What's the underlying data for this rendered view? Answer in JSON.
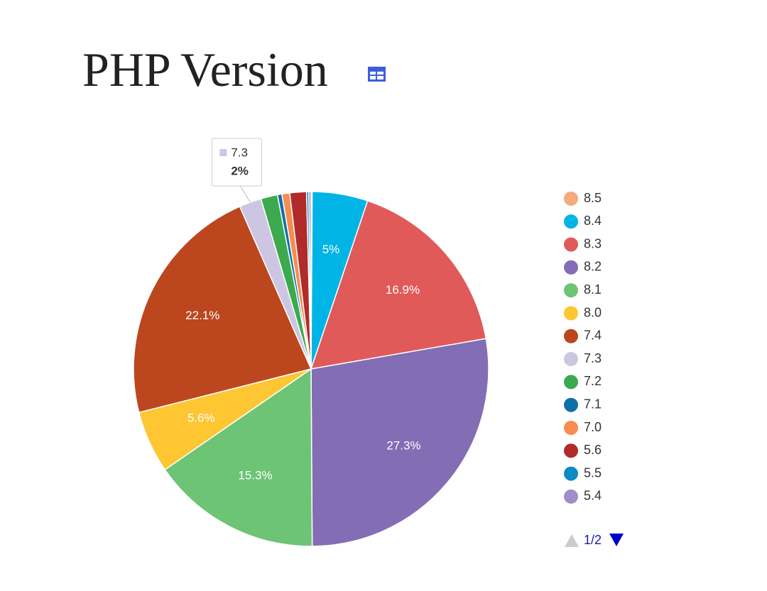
{
  "chart_data": {
    "type": "pie",
    "title": "PHP Version",
    "categories": [
      "8.5",
      "8.4",
      "8.3",
      "8.2",
      "8.1",
      "8.0",
      "7.4",
      "7.3",
      "7.2",
      "7.1",
      "7.0",
      "5.6",
      "5.5",
      "5.4"
    ],
    "values": [
      0.1,
      5,
      16.9,
      27.3,
      15.3,
      5.6,
      22.1,
      2,
      1.5,
      0.4,
      0.7,
      1.5,
      0.2,
      0.2
    ],
    "value_labels": [
      null,
      "5%",
      "16.9%",
      "27.3%",
      "15.3%",
      "5.6%",
      "22.1%",
      null,
      null,
      null,
      null,
      null,
      null,
      null
    ],
    "colors": [
      "#f6a97c",
      "#00b5e6",
      "#e15a5a",
      "#836db4",
      "#6cc474",
      "#fdc632",
      "#bc461e",
      "#cdc6e2",
      "#3ca94e",
      "#0f70a8",
      "#f78c50",
      "#b12b2b",
      "#0b8ac3",
      "#9e8fc8"
    ],
    "tooltip": {
      "category": "7.3",
      "value_label": "2%"
    },
    "legend_page": "1/2"
  }
}
